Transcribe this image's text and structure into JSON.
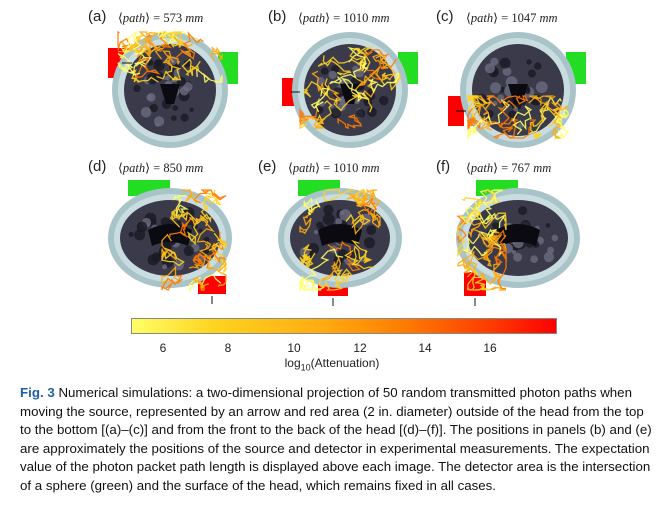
{
  "panels": [
    {
      "label": "(a)",
      "path_length": "573",
      "view": "coronal",
      "source_side": "top-left"
    },
    {
      "label": "(b)",
      "path_length": "1010",
      "view": "coronal",
      "source_side": "left"
    },
    {
      "label": "(c)",
      "path_length": "1047",
      "view": "coronal",
      "source_side": "bottom-left"
    },
    {
      "label": "(d)",
      "path_length": "850",
      "view": "axial",
      "source_side": "bottom-right"
    },
    {
      "label": "(e)",
      "path_length": "1010",
      "view": "axial",
      "source_side": "bottom-center"
    },
    {
      "label": "(f)",
      "path_length": "767",
      "view": "axial",
      "source_side": "bottom-left"
    }
  ],
  "path_symbol": "path",
  "unit": "mm",
  "colorbar": {
    "ticks": [
      "6",
      "8",
      "10",
      "12",
      "14",
      "16"
    ],
    "label_prefix": "log",
    "label_sub": "10",
    "label_suffix": "(Attenuation)",
    "colors": [
      "#ffff66",
      "#ffd21f",
      "#ffac10",
      "#ff7a00",
      "#ff3a00",
      "#ff0000"
    ]
  },
  "caption": {
    "fig_label": "Fig. 3",
    "text": "Numerical simulations: a two-dimensional projection of 50 random transmitted photon paths when moving the source, represented by an arrow and red area (2 in. diameter) outside of the head from the top to the bottom [(a)–(c)] and from the front to the back of the head [(d)–(f)]. The positions in panels (b) and (e) are approximately the positions of the source and detector in experimental measurements. The expectation value of the photon packet path length is displayed above each image. The detector area is the intersection of a sphere (green) and the surface of the head, which remains fixed in all cases."
  }
}
